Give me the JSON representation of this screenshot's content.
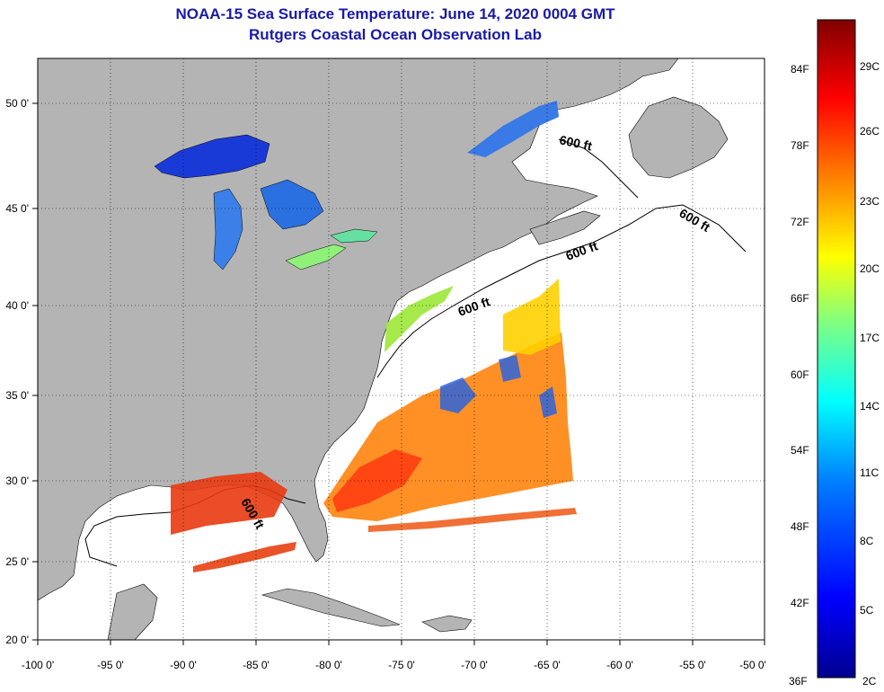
{
  "title": {
    "line1": "NOAA-15 Sea Surface Temperature:  June 14, 2020 0004 GMT",
    "line2": "Rutgers Coastal Ocean Observation Lab"
  },
  "map": {
    "lon_range": [
      -100,
      -50
    ],
    "lat_range": [
      20,
      52.5
    ],
    "lon_ticks": [
      "-100 0'",
      "-95 0'",
      "-90 0'",
      "-85 0'",
      "-80 0'",
      "-75 0'",
      "-70 0'",
      "-65 0'",
      "-60 0'",
      "-55 0'",
      "-50 0'"
    ],
    "lat_ticks": [
      "50 0'",
      "45 0'",
      "40 0'",
      "35 0'",
      "30 0'",
      "25 0'",
      "20 0'"
    ],
    "grid": "dotted",
    "land_color": "#b4b4b4",
    "ocean_color": "#ffffff",
    "contour_labels": [
      "600 ft",
      "600 ft",
      "600 ft",
      "600 ft",
      "600 ft"
    ]
  },
  "colorbar": {
    "fahrenheit_labels": [
      "84F",
      "78F",
      "72F",
      "66F",
      "60F",
      "54F",
      "48F",
      "42F",
      "36F"
    ],
    "celsius_labels": [
      "29C",
      "26C",
      "23C",
      "20C",
      "17C",
      "14C",
      "11C",
      "8C",
      "5C",
      "2C"
    ],
    "colors": [
      "#00008f",
      "#0000ff",
      "#0080ff",
      "#00ffff",
      "#80ff80",
      "#ffff00",
      "#ff8000",
      "#ff0000",
      "#800000"
    ]
  }
}
